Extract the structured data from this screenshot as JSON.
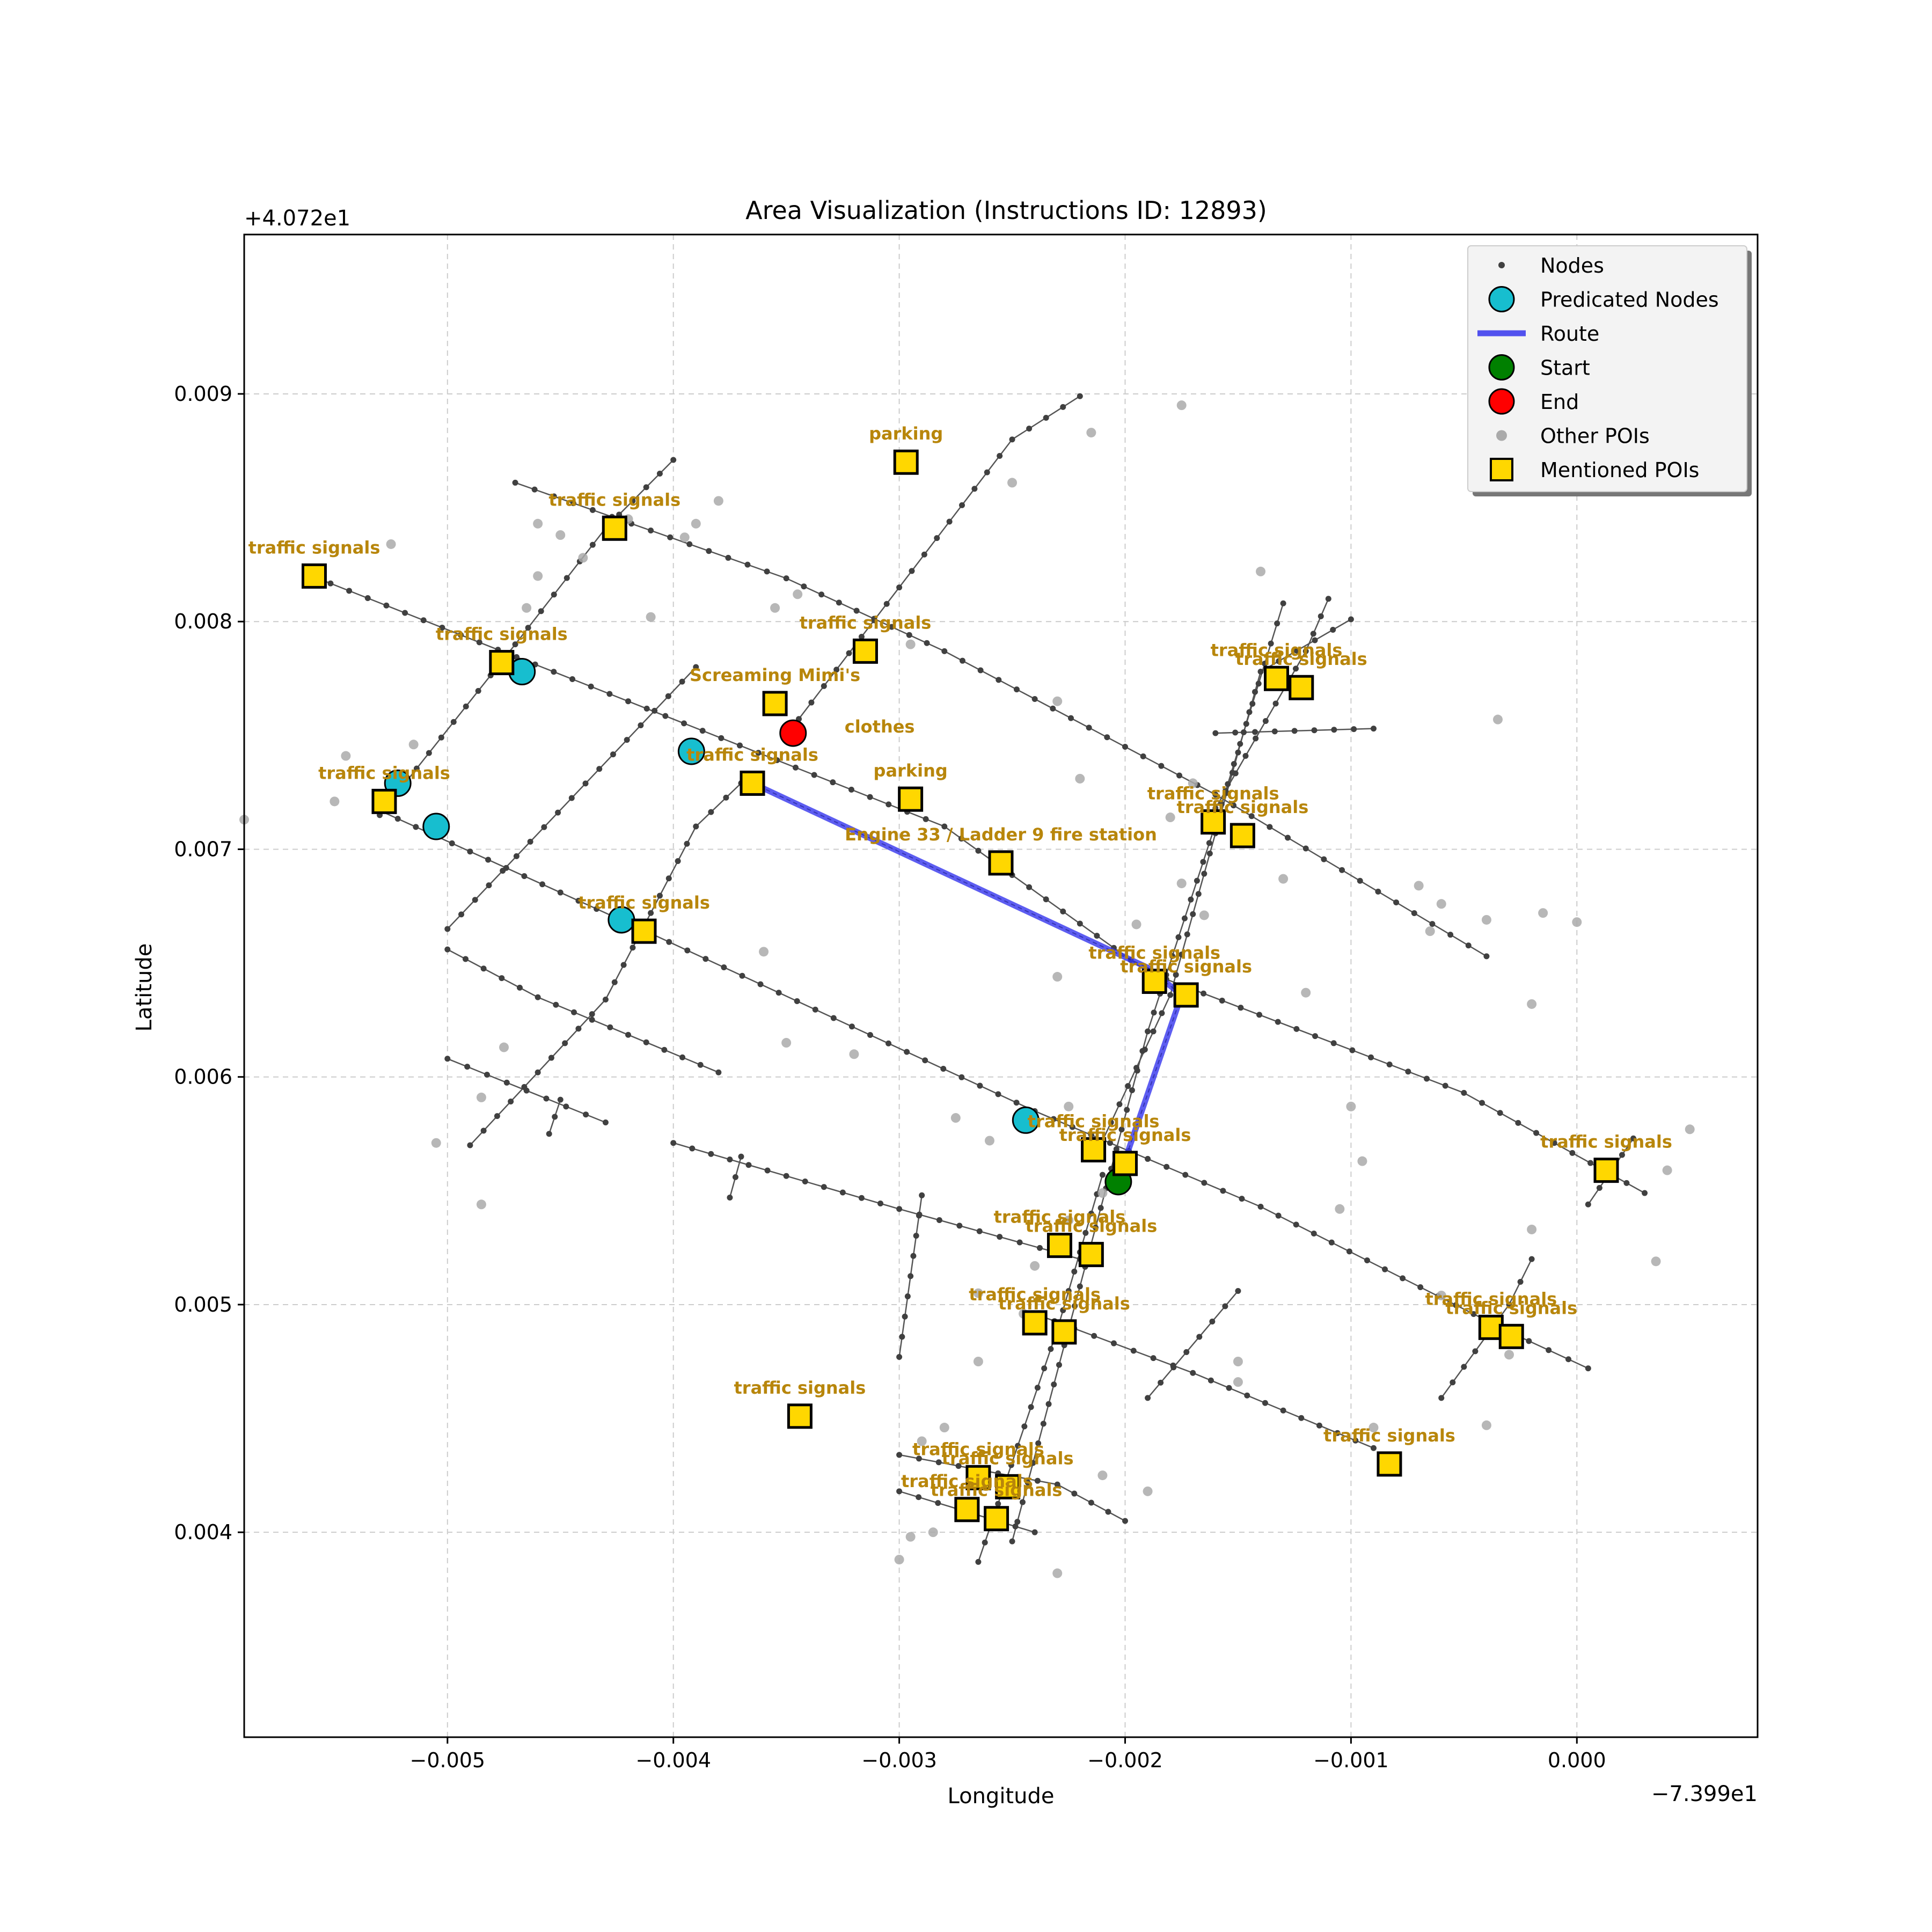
{
  "chart_data": {
    "type": "scatter",
    "title": "Area Visualization (Instructions ID: 12893)",
    "xlabel": "Longitude",
    "ylabel": "Latitude",
    "x_offset_label": "−7.399e1",
    "y_offset_label": "+4.072e1",
    "xlim": [
      -0.0059,
      0.0008
    ],
    "ylim": [
      0.0031,
      0.0097
    ],
    "x_ticks": [
      -0.005,
      -0.004,
      -0.003,
      -0.002,
      -0.001,
      0.0
    ],
    "x_tick_labels": [
      "−0.005",
      "−0.004",
      "−0.003",
      "−0.002",
      "−0.001",
      "0.000"
    ],
    "y_ticks": [
      0.004,
      0.005,
      0.006,
      0.007,
      0.008,
      0.009
    ],
    "y_tick_labels": [
      "0.004",
      "0.005",
      "0.006",
      "0.007",
      "0.008",
      "0.009"
    ],
    "grid": true,
    "legend_position": "top-right",
    "legend": [
      {
        "label": "Nodes",
        "marker": "small-dot",
        "color": "#404040"
      },
      {
        "label": "Predicated Nodes",
        "marker": "circle",
        "color": "#17becf"
      },
      {
        "label": "Route",
        "marker": "line",
        "color": "#3535ee"
      },
      {
        "label": "Start",
        "marker": "circle",
        "color": "#008000"
      },
      {
        "label": "End",
        "marker": "circle",
        "color": "#ff0000"
      },
      {
        "label": "Other POIs",
        "marker": "dot",
        "color": "#aaaaaa"
      },
      {
        "label": "Mentioned POIs",
        "marker": "square",
        "color": "#ffd700"
      }
    ],
    "colors": {
      "nodes": "#404040",
      "edges": "#555555",
      "predicated": "#17becf",
      "route": "#3535ee",
      "start": "#008000",
      "end": "#ff0000",
      "other_poi": "#aaaaaa",
      "mentioned_poi": "#ffd700",
      "poi_label": "#b8860b",
      "grid": "#cccccc"
    },
    "streets": [
      [
        [
          -0.0056,
          0.0082
        ],
        [
          -0.0042,
          0.00765
        ],
        [
          -0.0028,
          0.0071
        ],
        [
          -0.0019,
          0.00646
        ],
        [
          -0.0005,
          0.00593
        ],
        [
          0.0003,
          0.00549
        ]
      ],
      [
        [
          -0.0047,
          0.00861
        ],
        [
          -0.0035,
          0.00819
        ],
        [
          -0.0028,
          0.00787
        ],
        [
          -0.0016,
          0.00724
        ],
        [
          -0.0004,
          0.00653
        ]
      ],
      [
        [
          -0.0053,
          0.00717
        ],
        [
          -0.0041,
          0.00663
        ],
        [
          -0.0024,
          0.00585
        ],
        [
          -0.0014,
          0.00543
        ],
        [
          -0.0003,
          0.00488
        ],
        [
          5e-05,
          0.00472
        ]
      ],
      [
        [
          -0.005,
          0.00656
        ],
        [
          -0.0046,
          0.00635
        ],
        [
          -0.0038,
          0.00602
        ]
      ],
      [
        [
          -0.005,
          0.00608
        ],
        [
          -0.0043,
          0.0058
        ]
      ],
      [
        [
          -0.004,
          0.00571
        ],
        [
          -0.003,
          0.00542
        ],
        [
          -0.0022,
          0.0052
        ]
      ],
      [
        [
          -0.0024,
          0.00496
        ],
        [
          -0.0017,
          0.0047
        ],
        [
          -0.0009,
          0.00437
        ]
      ],
      [
        [
          -0.003,
          0.00434
        ],
        [
          -0.0023,
          0.00421
        ],
        [
          -0.002,
          0.00405
        ]
      ],
      [
        [
          -0.003,
          0.00418
        ],
        [
          -0.0024,
          0.004
        ]
      ],
      [
        [
          -0.0035,
          0.0075
        ],
        [
          -0.0025,
          0.0088
        ],
        [
          -0.0022,
          0.00899
        ]
      ],
      [
        [
          -0.005,
          0.00665
        ],
        [
          -0.0039,
          0.0078
        ]
      ],
      [
        [
          -0.0049,
          0.0057
        ],
        [
          -0.0043,
          0.00634
        ],
        [
          -0.0039,
          0.0071
        ],
        [
          -0.0037,
          0.00729
        ]
      ],
      [
        [
          -0.0053,
          0.00715
        ],
        [
          -0.0047,
          0.0079
        ],
        [
          -0.0043,
          0.00841
        ],
        [
          -0.004,
          0.00871
        ]
      ],
      [
        [
          -0.003,
          0.00477
        ],
        [
          -0.0029,
          0.00548
        ]
      ],
      [
        [
          -0.00265,
          0.00387
        ],
        [
          -0.0023,
          0.00489
        ],
        [
          -0.0021,
          0.00557
        ]
      ],
      [
        [
          -0.0025,
          0.00396
        ],
        [
          -0.0019,
          0.0062
        ],
        [
          -0.0016,
          0.00711
        ],
        [
          -0.0013,
          0.00808
        ]
      ],
      [
        [
          -0.0021,
          0.00572
        ],
        [
          -0.0018,
          0.00636
        ],
        [
          -0.0014,
          0.00778
        ],
        [
          -0.001,
          0.00801
        ]
      ],
      [
        [
          -0.0016,
          0.00718
        ],
        [
          -0.0012,
          0.00787
        ],
        [
          -0.0011,
          0.0081
        ]
      ],
      [
        [
          -0.0016,
          0.00751
        ],
        [
          -0.0009,
          0.00753
        ]
      ],
      [
        [
          -0.0019,
          0.00459
        ],
        [
          -0.0015,
          0.00506
        ]
      ],
      [
        [
          -0.0006,
          0.00459
        ],
        [
          -0.0003,
          0.005
        ],
        [
          -0.0002,
          0.0052
        ]
      ],
      [
        [
          5e-05,
          0.00544
        ],
        [
          0.00025,
          0.00573
        ]
      ],
      [
        [
          -0.00375,
          0.00547
        ],
        [
          -0.0037,
          0.00565
        ]
      ],
      [
        [
          -0.00455,
          0.00575
        ],
        [
          -0.0045,
          0.0059
        ]
      ]
    ],
    "other_pois": [
      [
        -0.0059,
        0.00713
      ],
      [
        -0.00545,
        0.00741
      ],
      [
        -0.0055,
        0.00721
      ],
      [
        -0.00525,
        0.00834
      ],
      [
        -0.00515,
        0.00746
      ],
      [
        -0.00505,
        0.00571
      ],
      [
        -0.00485,
        0.00544
      ],
      [
        -0.00485,
        0.00591
      ],
      [
        -0.00475,
        0.00613
      ],
      [
        -0.00465,
        0.00806
      ],
      [
        -0.0046,
        0.0082
      ],
      [
        -0.0046,
        0.00843
      ],
      [
        -0.0045,
        0.00838
      ],
      [
        -0.0044,
        0.00828
      ],
      [
        -0.0042,
        0.00845
      ],
      [
        -0.00395,
        0.00837
      ],
      [
        -0.0039,
        0.00843
      ],
      [
        -0.0038,
        0.00853
      ],
      [
        -0.00355,
        0.00806
      ],
      [
        -0.00345,
        0.00812
      ],
      [
        -0.0041,
        0.00802
      ],
      [
        -0.0036,
        0.00655
      ],
      [
        -0.0035,
        0.00615
      ],
      [
        -0.0032,
        0.0061
      ],
      [
        -0.00295,
        0.0079
      ],
      [
        -0.00275,
        0.00582
      ],
      [
        -0.0026,
        0.00572
      ],
      [
        -0.0025,
        0.00861
      ],
      [
        -0.0023,
        0.00765
      ],
      [
        -0.0022,
        0.00731
      ],
      [
        -0.0023,
        0.00644
      ],
      [
        -0.00215,
        0.00883
      ],
      [
        -0.00225,
        0.00537
      ],
      [
        -0.0024,
        0.00517
      ],
      [
        -0.00245,
        0.00496
      ],
      [
        -0.00265,
        0.00475
      ],
      [
        -0.0028,
        0.00446
      ],
      [
        -0.0029,
        0.0044
      ],
      [
        -0.003,
        0.00388
      ],
      [
        -0.00295,
        0.00398
      ],
      [
        -0.00285,
        0.004
      ],
      [
        -0.0023,
        0.00382
      ],
      [
        -0.0021,
        0.00425
      ],
      [
        -0.00195,
        0.00667
      ],
      [
        -0.0019,
        0.00646
      ],
      [
        -0.0018,
        0.00714
      ],
      [
        -0.00175,
        0.00895
      ],
      [
        -0.00175,
        0.00685
      ],
      [
        -0.0017,
        0.00729
      ],
      [
        -0.00165,
        0.00671
      ],
      [
        -0.0014,
        0.00822
      ],
      [
        -0.0013,
        0.00687
      ],
      [
        -0.0012,
        0.00637
      ],
      [
        -0.00105,
        0.00542
      ],
      [
        -0.001,
        0.00587
      ],
      [
        -0.00095,
        0.00563
      ],
      [
        -0.0009,
        0.00446
      ],
      [
        -0.00065,
        0.00664
      ],
      [
        -0.0007,
        0.00684
      ],
      [
        -0.0006,
        0.00676
      ],
      [
        -0.0004,
        0.00669
      ],
      [
        -0.00035,
        0.00757
      ],
      [
        -0.00015,
        0.00672
      ],
      [
        -0.0002,
        0.00632
      ],
      [
        -0.0002,
        0.00533
      ],
      [
        -0.0003,
        0.00478
      ],
      [
        -0.0004,
        0.00447
      ],
      [
        0.0,
        0.00668
      ],
      [
        0.00035,
        0.00519
      ],
      [
        0.0004,
        0.00559
      ],
      [
        0.0005,
        0.00577
      ],
      [
        -0.0015,
        0.00475
      ],
      [
        -0.0015,
        0.00466
      ],
      [
        -0.0019,
        0.00418
      ],
      [
        -0.00265,
        0.00505
      ],
      [
        -0.00225,
        0.00587
      ],
      [
        -0.0021,
        0.00549
      ],
      [
        -0.0006,
        0.00504
      ]
    ],
    "predicated_nodes": [
      [
        -0.00467,
        0.00778
      ],
      [
        -0.00392,
        0.00743
      ],
      [
        -0.00522,
        0.00729
      ],
      [
        -0.00505,
        0.0071
      ],
      [
        -0.00423,
        0.00669
      ],
      [
        -0.00244,
        0.00581
      ]
    ],
    "route": [
      [
        -0.00365,
        0.00729
      ],
      [
        -0.0019,
        0.00648
      ],
      [
        -0.00175,
        0.00636
      ],
      [
        -0.00203,
        0.00555
      ]
    ],
    "start": [
      -0.00203,
      0.00554
    ],
    "end": [
      -0.00347,
      0.00751
    ],
    "mentioned_pois": [
      {
        "label": "traffic signals",
        "x": -0.00559,
        "y": 0.0082
      },
      {
        "label": "traffic signals",
        "x": -0.00426,
        "y": 0.00841
      },
      {
        "label": "traffic signals",
        "x": -0.00476,
        "y": 0.00782
      },
      {
        "label": "traffic signals",
        "x": -0.00528,
        "y": 0.00721
      },
      {
        "label": "traffic signals",
        "x": -0.00365,
        "y": 0.00729
      },
      {
        "label": "traffic signals",
        "x": -0.00413,
        "y": 0.00664
      },
      {
        "label": "parking",
        "x": -0.00297,
        "y": 0.0087
      },
      {
        "label": "traffic signals",
        "x": -0.00315,
        "y": 0.00787
      },
      {
        "label": "Screaming Mimi's",
        "x": -0.00355,
        "y": 0.00764
      },
      {
        "label": "clothes",
        "x": -0.00355,
        "y": 0.00764,
        "label_only": true
      },
      {
        "label": "parking",
        "x": -0.00295,
        "y": 0.00722
      },
      {
        "label": "Engine 33 / Ladder 9 fire station",
        "x": -0.00255,
        "y": 0.00694
      },
      {
        "label": "traffic signals",
        "x": -0.00133,
        "y": 0.00775
      },
      {
        "label": "traffic signals",
        "x": -0.00122,
        "y": 0.00771
      },
      {
        "label": "traffic signals",
        "x": -0.00161,
        "y": 0.00712
      },
      {
        "label": "traffic signals",
        "x": -0.00148,
        "y": 0.00706
      },
      {
        "label": "traffic signals",
        "x": -0.00187,
        "y": 0.00642
      },
      {
        "label": "traffic signals",
        "x": -0.00173,
        "y": 0.00636
      },
      {
        "label": "traffic signals",
        "x": -0.00214,
        "y": 0.00568
      },
      {
        "label": "traffic signals",
        "x": -0.002,
        "y": 0.00562
      },
      {
        "label": "traffic signals",
        "x": 0.00013,
        "y": 0.00559
      },
      {
        "label": "traffic signals",
        "x": -0.00229,
        "y": 0.00526
      },
      {
        "label": "traffic signals",
        "x": -0.00215,
        "y": 0.00522
      },
      {
        "label": "traffic signals",
        "x": -0.0024,
        "y": 0.00492
      },
      {
        "label": "traffic signals",
        "x": -0.00227,
        "y": 0.00488
      },
      {
        "label": "traffic signals",
        "x": -0.00038,
        "y": 0.0049
      },
      {
        "label": "traffic signals",
        "x": -0.00029,
        "y": 0.00486
      },
      {
        "label": "traffic signals",
        "x": -0.00344,
        "y": 0.00451
      },
      {
        "label": "traffic signals",
        "x": -0.00083,
        "y": 0.0043
      },
      {
        "label": "traffic signals",
        "x": -0.00265,
        "y": 0.00424
      },
      {
        "label": "traffic signals",
        "x": -0.00252,
        "y": 0.0042
      },
      {
        "label": "traffic signals",
        "x": -0.0027,
        "y": 0.0041
      },
      {
        "label": "traffic signals",
        "x": -0.00257,
        "y": 0.00406
      }
    ]
  }
}
